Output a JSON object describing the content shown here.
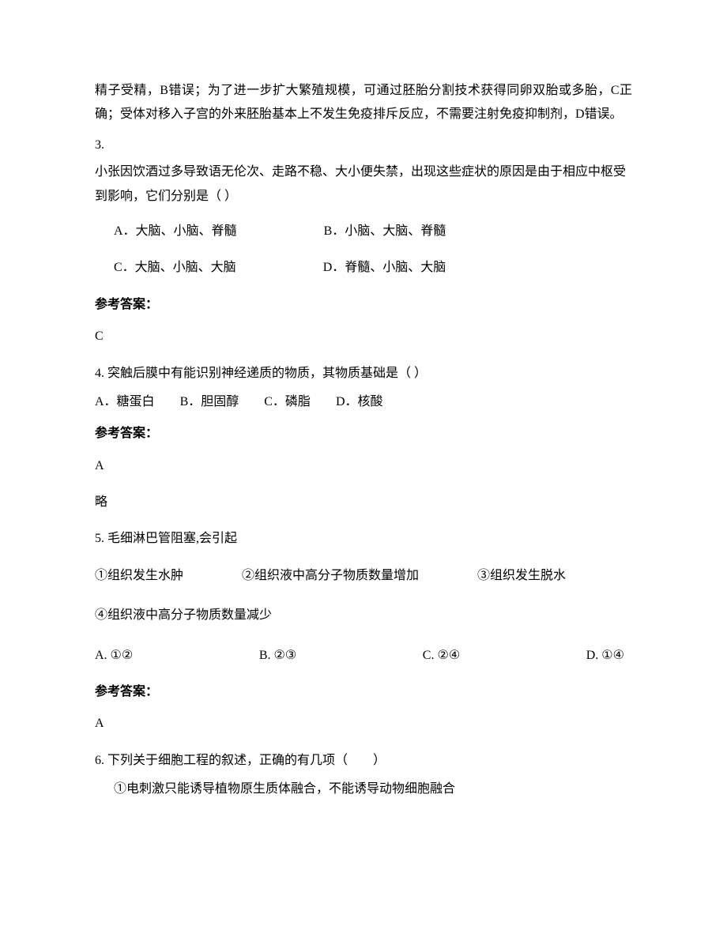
{
  "intro_para": "精子受精，B错误；为了进一步扩大繁殖规模，可通过胚胎分割技术获得同卵双胎或多胎，C正确；受体对移入子宫的外来胚胎基本上不发生免疫排斥反应，不需要注射免疫抑制剂，D错误。",
  "q3": {
    "num": "3.",
    "text": "小张因饮酒过多导致语无伦次、走路不稳、大小便失禁，出现这些症状的原因是由于相应中枢受到影响，它们分别是（  ）",
    "options": {
      "a": "A．大脑、小脑、脊髓",
      "b": "B．小脑、大脑、脊髓",
      "c": "C．大脑、小脑、大脑",
      "d": "D．脊髓、小脑、大脑"
    },
    "answer_label": "参考答案：",
    "answer": "C"
  },
  "q4": {
    "heading": "4. 突触后膜中有能识别神经递质的物质，其物质基础是（  ）",
    "options": {
      "a": "A．糖蛋白",
      "b": "B．胆固醇",
      "c": "C．磷脂",
      "d": "D．核酸"
    },
    "answer_label": "参考答案：",
    "answer": "A",
    "brief": "略"
  },
  "q5": {
    "heading": "5. 毛细淋巴管阻塞,会引起",
    "items": {
      "i1": "①组织发生水肿",
      "i2": "②组织液中高分子物质数量增加",
      "i3": "③组织发生脱水",
      "i4": "④组织液中高分子物质数量减少"
    },
    "options": {
      "a": "A. ①②",
      "b": "B. ②③",
      "c": "C. ②④",
      "d": "D. ①④"
    },
    "answer_label": "参考答案：",
    "answer": "A"
  },
  "q6": {
    "heading": "6. 下列关于细胞工程的叙述，正确的有几项（　　）",
    "item1": "①电刺激只能诱导植物原生质体融合，不能诱导动物细胞融合"
  }
}
